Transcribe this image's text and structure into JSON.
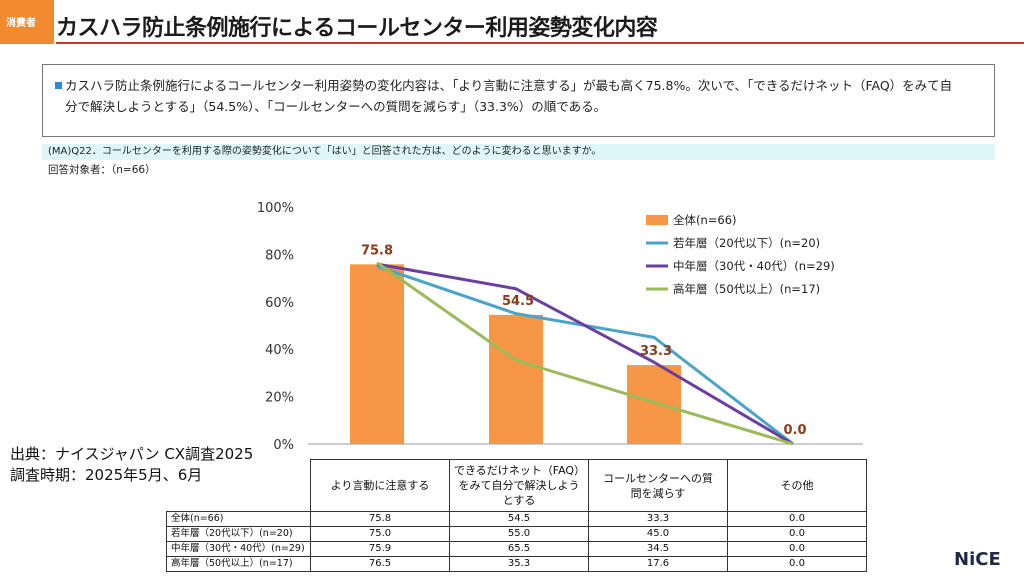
{
  "header": {
    "tag": "消費者",
    "title": "カスハラ防止条例施行によるコールセンター利用姿勢変化内容"
  },
  "summary": {
    "line1": "カスハラ防止条例施行によるコールセンター利用姿勢の変化内容は、「より言動に注意する」が最も高く75.8%。次いで、「できるだけネット（FAQ）をみて自",
    "line2": "分で解決しようとする」（54.5%）、「コールセンターへの質問を減らす」（33.3%）の順である。"
  },
  "question": "(MA)Q22．コールセンターを利用する際の姿勢変化について「はい」と回答された方は、どのように変わると思いますか。",
  "respondents": "回答対象者：（n=66）",
  "source": {
    "line1": "出典：ナイスジャパン CX調査2025",
    "line2": "調査時期：2025年5月、6月"
  },
  "logo": "NiCE",
  "colors": {
    "accent": "#f28b2f",
    "title_rule": "#c0392b",
    "bar": "#f79646",
    "young": "#4aa3c8",
    "middle": "#6b3fa0",
    "senior": "#9bbb59",
    "data_label": "#8b3a1a"
  },
  "chart_data": {
    "type": "bar",
    "categories": [
      "より言動に注意する",
      "できるだけネット（FAQ）をみて自分で解決しようとする",
      "コールセンターへの質問を減らす",
      "その他"
    ],
    "category_lines": [
      [
        "より言動に注意する"
      ],
      [
        "できるだけネット（FAQ）",
        "をみて自分で解決しよう",
        "とする"
      ],
      [
        "コールセンターへの質",
        "問を減らす"
      ],
      [
        "その他"
      ]
    ],
    "series": [
      {
        "name": "全体(n=66)",
        "kind": "bar",
        "values": [
          75.8,
          54.5,
          33.3,
          0.0
        ]
      },
      {
        "name": "若年層（20代以下）(n=20)",
        "kind": "line",
        "values": [
          75.0,
          55.0,
          45.0,
          0.0
        ]
      },
      {
        "name": "中年層（30代・40代）(n=29)",
        "kind": "line",
        "values": [
          75.9,
          65.5,
          34.5,
          0.0
        ]
      },
      {
        "name": "高年層（50代以上）(n=17)",
        "kind": "line",
        "values": [
          76.5,
          35.3,
          17.6,
          0.0
        ]
      }
    ],
    "data_labels": [
      "75.8",
      "54.5",
      "33.3",
      "0.0"
    ],
    "y_ticks": [
      "0%",
      "20%",
      "40%",
      "60%",
      "80%",
      "100%"
    ],
    "ylim": [
      0,
      100
    ],
    "legend_position": "top-right",
    "grid": false
  },
  "table": {
    "rows": [
      {
        "label": "全体(n=66)",
        "values": [
          "75.8",
          "54.5",
          "33.3",
          "0.0"
        ]
      },
      {
        "label": "若年層（20代以下）(n=20)",
        "values": [
          "75.0",
          "55.0",
          "45.0",
          "0.0"
        ]
      },
      {
        "label": "中年層（30代・40代）(n=29)",
        "values": [
          "75.9",
          "65.5",
          "34.5",
          "0.0"
        ]
      },
      {
        "label": "高年層（50代以上）(n=17)",
        "values": [
          "76.5",
          "35.3",
          "17.6",
          "0.0"
        ]
      }
    ]
  }
}
